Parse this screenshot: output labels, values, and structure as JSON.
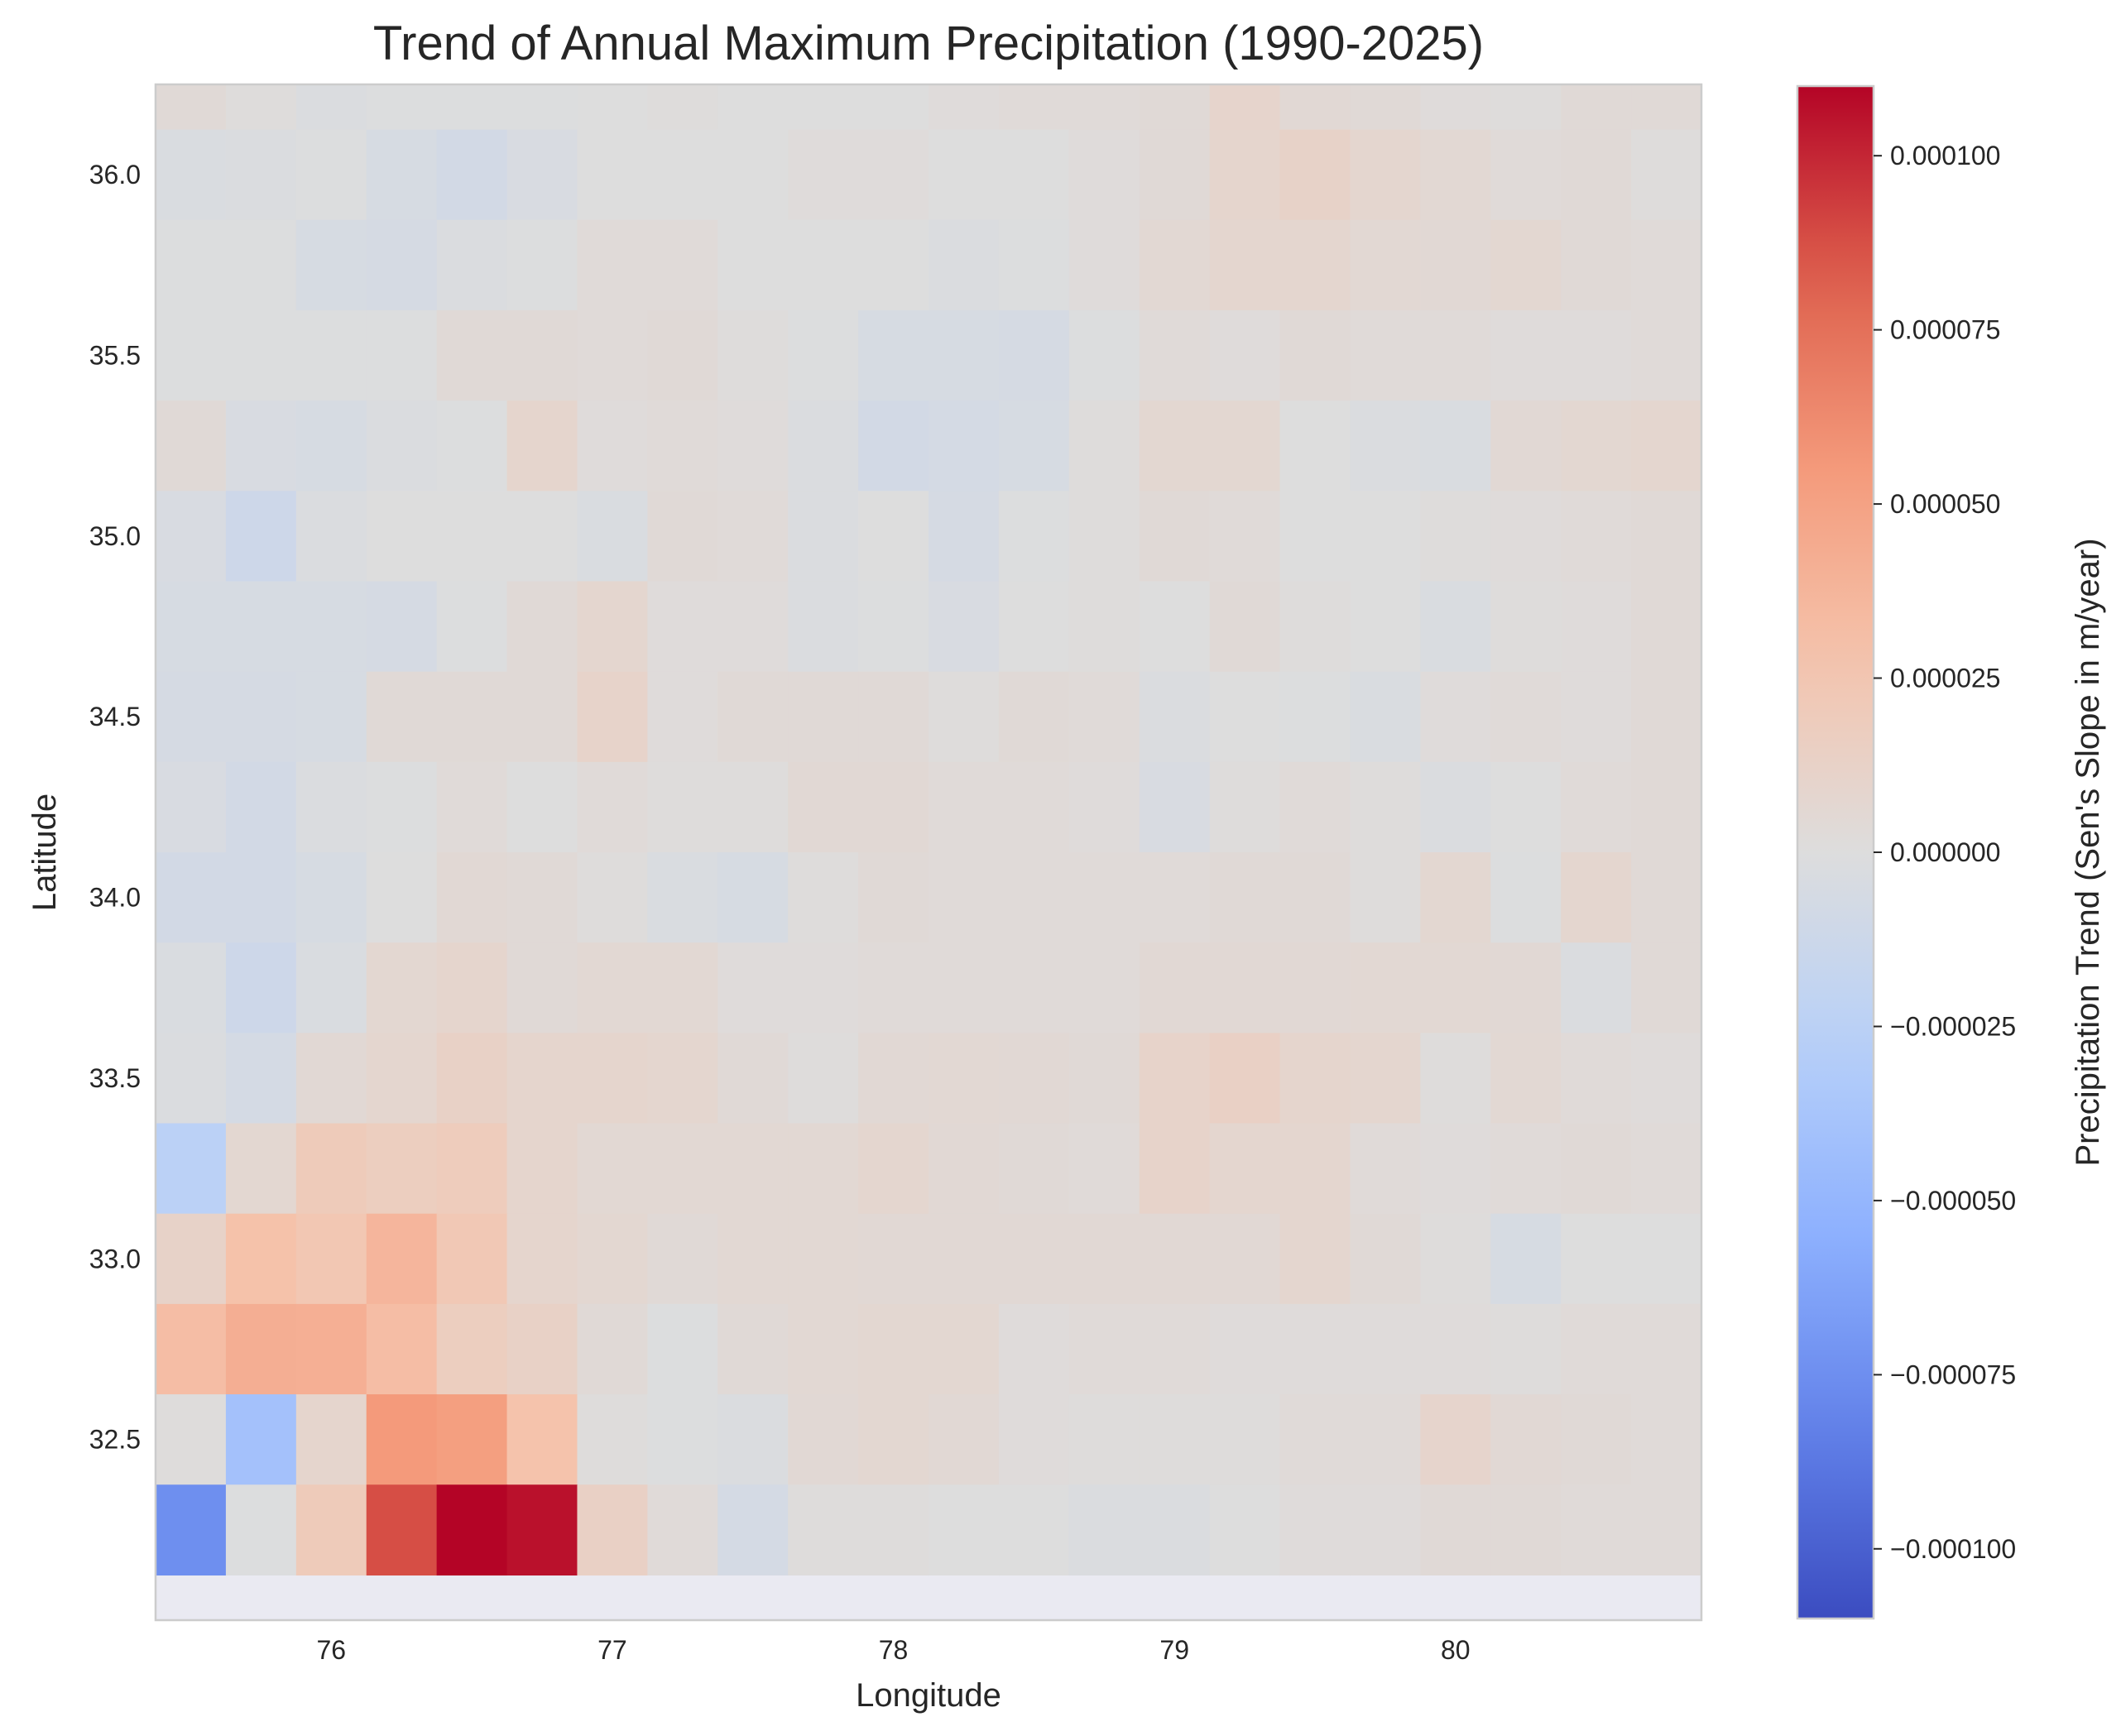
{
  "chart_data": {
    "type": "heatmap",
    "title": "Trend of Annual Maximum Precipitation (1990-2025)",
    "xlabel": "Longitude",
    "ylabel": "Latitude",
    "colorbar_label": "Precipitation Trend (Sen's Slope in m/year)",
    "colormap": "coolwarm",
    "xlim": [
      75.375,
      80.875
    ],
    "ylim": [
      32.0,
      36.25
    ],
    "x_ticks": [
      "76",
      "77",
      "78",
      "79",
      "80"
    ],
    "y_ticks": [
      "32.5",
      "33.0",
      "33.5",
      "34.0",
      "34.5",
      "35.0",
      "35.5",
      "36.0"
    ],
    "colorbar_ticks": [
      "−0.000100",
      "−0.000075",
      "−0.000050",
      "−0.000025",
      "0.000000",
      "0.000025",
      "0.000050",
      "0.000075",
      "0.000100"
    ],
    "vmin": -0.00011,
    "vmax": 0.00011,
    "grid": false,
    "lon_centers": [
      75.5,
      75.75,
      76.0,
      76.25,
      76.5,
      76.75,
      77.0,
      77.25,
      77.5,
      77.75,
      78.0,
      78.25,
      78.5,
      78.75,
      79.0,
      79.25,
      79.5,
      79.75,
      80.0,
      80.25,
      80.5,
      80.75
    ],
    "lat_centers": [
      36.25,
      36.0,
      35.75,
      35.5,
      35.25,
      35.0,
      34.75,
      34.5,
      34.25,
      34.0,
      33.75,
      33.5,
      33.25,
      33.0,
      32.75,
      32.5,
      32.25
    ],
    "values_units": "1e-6 m/year",
    "values": [
      [
        4,
        1,
        -2,
        -1,
        -1,
        -1,
        0,
        1,
        0,
        0,
        0,
        2,
        3,
        3,
        4,
        10,
        5,
        4,
        2,
        1,
        4,
        4
      ],
      [
        -3,
        -2,
        -1,
        -5,
        -8,
        -4,
        0,
        0,
        0,
        2,
        2,
        0,
        0,
        2,
        4,
        9,
        12,
        8,
        6,
        3,
        4,
        1
      ],
      [
        -1,
        -1,
        -5,
        -6,
        -2,
        -1,
        3,
        3,
        0,
        0,
        0,
        -2,
        -1,
        2,
        6,
        8,
        8,
        6,
        5,
        7,
        4,
        3
      ],
      [
        -1,
        -1,
        -1,
        -1,
        4,
        4,
        3,
        4,
        1,
        -1,
        -5,
        -5,
        -6,
        -1,
        3,
        2,
        4,
        3,
        3,
        2,
        2,
        3
      ],
      [
        4,
        -4,
        -5,
        -2,
        -1,
        9,
        2,
        3,
        2,
        -2,
        -8,
        -7,
        -5,
        1,
        7,
        7,
        0,
        -2,
        -3,
        5,
        7,
        8
      ],
      [
        -4,
        -12,
        -2,
        0,
        0,
        0,
        -3,
        4,
        3,
        -2,
        0,
        -6,
        -1,
        1,
        4,
        3,
        0,
        0,
        1,
        2,
        3,
        4
      ],
      [
        -5,
        -5,
        -5,
        -6,
        -1,
        4,
        8,
        2,
        2,
        -2,
        -1,
        -4,
        0,
        1,
        0,
        4,
        1,
        0,
        -3,
        1,
        2,
        4
      ],
      [
        -6,
        -6,
        -5,
        4,
        4,
        4,
        11,
        2,
        4,
        4,
        4,
        1,
        4,
        3,
        -2,
        0,
        -1,
        -3,
        2,
        3,
        2,
        4
      ],
      [
        -4,
        -8,
        -2,
        -1,
        3,
        0,
        3,
        1,
        1,
        5,
        5,
        3,
        3,
        2,
        -4,
        1,
        3,
        1,
        -2,
        0,
        3,
        4
      ],
      [
        -8,
        -8,
        -5,
        0,
        5,
        4,
        1,
        -3,
        -5,
        1,
        4,
        3,
        3,
        3,
        3,
        4,
        4,
        1,
        7,
        -1,
        8,
        4
      ],
      [
        -3,
        -12,
        -3,
        7,
        9,
        4,
        6,
        6,
        2,
        2,
        3,
        3,
        3,
        3,
        5,
        5,
        5,
        6,
        6,
        5,
        -2,
        4
      ],
      [
        -2,
        -7,
        5,
        8,
        13,
        9,
        9,
        8,
        4,
        1,
        5,
        6,
        5,
        4,
        11,
        14,
        9,
        8,
        1,
        6,
        3,
        2
      ],
      [
        -25,
        7,
        20,
        17,
        19,
        9,
        6,
        6,
        6,
        6,
        8,
        5,
        4,
        3,
        11,
        8,
        8,
        3,
        2,
        3,
        4,
        3
      ],
      [
        12,
        29,
        24,
        37,
        23,
        9,
        7,
        4,
        6,
        6,
        5,
        5,
        5,
        5,
        5,
        5,
        8,
        4,
        1,
        -5,
        0,
        0
      ],
      [
        32,
        42,
        41,
        32,
        17,
        13,
        4,
        -1,
        4,
        6,
        7,
        7,
        2,
        3,
        3,
        2,
        2,
        2,
        2,
        1,
        3,
        3
      ],
      [
        1,
        -40,
        9,
        55,
        52,
        28,
        1,
        -1,
        -2,
        5,
        7,
        5,
        2,
        1,
        1,
        1,
        3,
        3,
        10,
        5,
        4,
        3
      ],
      [
        -75,
        -1,
        20,
        88,
        110,
        106,
        14,
        3,
        -7,
        1,
        1,
        0,
        0,
        -2,
        -2,
        0,
        2,
        2,
        4,
        4,
        3,
        3
      ]
    ]
  }
}
